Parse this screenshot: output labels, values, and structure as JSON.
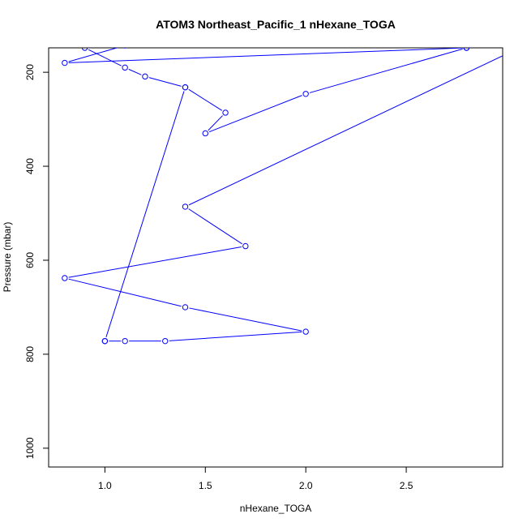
{
  "chart_data": {
    "type": "line",
    "title": "ATOM3 Northeast_Pacific_1 nHexane_TOGA",
    "xlabel": "nHexane_TOGA",
    "ylabel": "Pressure (mbar)",
    "xlim": [
      0.72,
      2.98
    ],
    "ylim": [
      1040,
      148
    ],
    "y_reversed": true,
    "x_ticks": [
      "1.0",
      "1.5",
      "2.0",
      "2.5"
    ],
    "y_ticks": [
      "200",
      "400",
      "600",
      "800",
      "1000"
    ],
    "x_tick_values": [
      1.0,
      1.5,
      2.0,
      2.5
    ],
    "y_tick_values": [
      200,
      400,
      600,
      800,
      1000
    ],
    "grid": false,
    "legend": "none",
    "series": [
      {
        "color": "#0000ff",
        "marker": "open-circle",
        "points": [
          {
            "x": 2.8,
            "y": 148
          },
          {
            "x": 0.8,
            "y": 180
          },
          {
            "x": 1.1,
            "y": 143
          },
          {
            "x": 0.9,
            "y": 148
          },
          {
            "x": 1.1,
            "y": 190
          },
          {
            "x": 1.2,
            "y": 209
          },
          {
            "x": 1.4,
            "y": 232
          },
          {
            "x": 1.6,
            "y": 286
          },
          {
            "x": 1.5,
            "y": 330
          },
          {
            "x": 2.0,
            "y": 246
          },
          {
            "x": 2.8,
            "y": 148
          },
          {
            "x": 3.3,
            "y": 100
          },
          {
            "x": 1.4,
            "y": 486
          },
          {
            "x": 1.7,
            "y": 570
          },
          {
            "x": 0.8,
            "y": 638
          },
          {
            "x": 1.4,
            "y": 700
          },
          {
            "x": 2.0,
            "y": 752
          },
          {
            "x": 1.3,
            "y": 772
          },
          {
            "x": 1.1,
            "y": 772
          },
          {
            "x": 1.0,
            "y": 772
          },
          {
            "x": 1.0,
            "y": 772
          },
          {
            "x": 1.4,
            "y": 232
          }
        ]
      }
    ]
  }
}
